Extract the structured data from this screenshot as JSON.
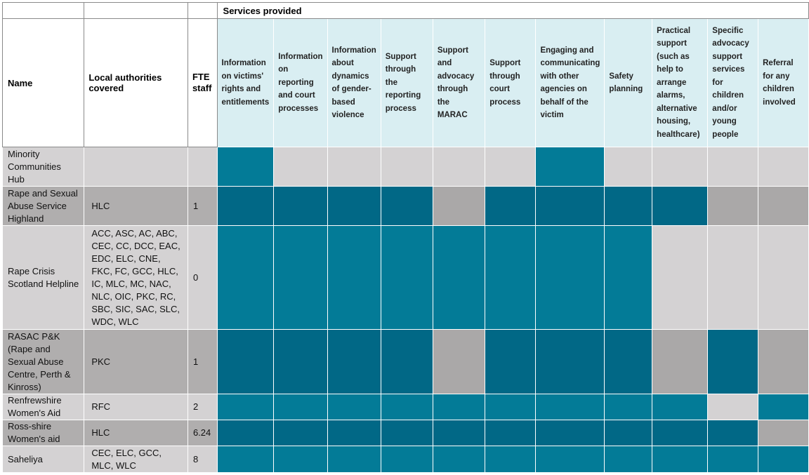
{
  "header": {
    "services_provided": "Services provided",
    "name": "Name",
    "local_authorities": "Local authorities covered",
    "fte_staff": "FTE staff"
  },
  "services": [
    "Information on victims' rights and entitlements",
    "Information on reporting and court processes",
    "Information about dynamics of gender-based violence",
    "Support through the reporting process",
    "Support and advocacy through the MARAC",
    "Support through court process",
    "Engaging and communicating with other agencies on behalf of the victim",
    "Safety planning",
    "Practical support (such as help to arrange alarms, alternative housing, healthcare)",
    "Specific advocacy support services for children and/or young people",
    "Referral for any children involved"
  ],
  "rows": [
    {
      "name": "Minority Communities Hub",
      "la": "",
      "fte": "",
      "shade": "light",
      "services": [
        true,
        false,
        false,
        false,
        false,
        false,
        true,
        false,
        false,
        false,
        false
      ]
    },
    {
      "name": "Rape and Sexual Abuse Service Highland",
      "la": "HLC",
      "fte": "1",
      "shade": "dark",
      "services": [
        true,
        true,
        true,
        true,
        false,
        true,
        true,
        true,
        true,
        false,
        false
      ]
    },
    {
      "name": "Rape Crisis Scotland Helpline",
      "la": "ACC, ASC, AC, ABC, CEC, CC, DCC, EAC, EDC, ELC, CNE, FKC, FC, GCC, HLC, IC, MLC, MC, NAC, NLC, OIC, PKC, RC, SBC, SIC, SAC, SLC, WDC, WLC",
      "fte": "0",
      "shade": "light",
      "services": [
        true,
        true,
        true,
        true,
        true,
        true,
        true,
        true,
        false,
        false,
        false
      ]
    },
    {
      "name": "RASAC P&K (Rape and Sexual Abuse Centre, Perth & Kinross)",
      "la": "PKC",
      "fte": "1",
      "shade": "dark",
      "services": [
        true,
        true,
        true,
        true,
        false,
        true,
        true,
        true,
        false,
        true,
        false
      ]
    },
    {
      "name": "Renfrewshire Women's Aid",
      "la": "RFC",
      "fte": "2",
      "shade": "light",
      "services": [
        true,
        true,
        true,
        true,
        true,
        true,
        true,
        true,
        true,
        false,
        true
      ]
    },
    {
      "name": "Ross-shire Women's aid",
      "la": "HLC",
      "fte": "6.24",
      "shade": "dark",
      "services": [
        true,
        true,
        true,
        true,
        true,
        true,
        true,
        true,
        true,
        true,
        false
      ]
    },
    {
      "name": "Saheliya",
      "la": "CEC, ELC, GCC, MLC, WLC",
      "fte": "8",
      "shade": "light",
      "services": [
        true,
        true,
        true,
        true,
        true,
        true,
        true,
        true,
        true,
        true,
        true
      ]
    }
  ],
  "colors": {
    "provided_light": "#037b97",
    "provided_dark": "#016886",
    "not_provided_light": "#d4d2d3",
    "not_provided_dark": "#aaa8a8",
    "service_header_bg": "#d9eef2"
  }
}
